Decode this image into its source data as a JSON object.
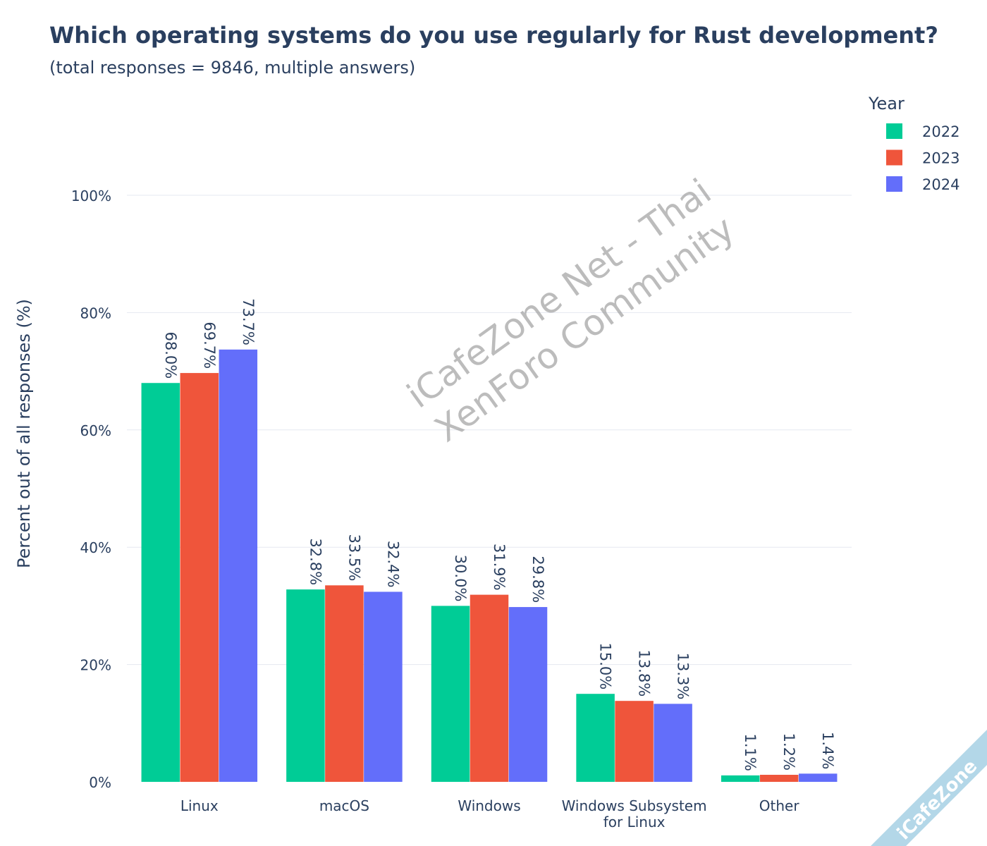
{
  "chart_data": {
    "type": "bar",
    "title": "Which operating systems do you use regularly for Rust development?",
    "subtitle": "(total responses = 9846, multiple answers)",
    "xlabel": "",
    "ylabel": "Percent out of all responses (%)",
    "ylim": [
      0,
      100
    ],
    "yticks": [
      0,
      20,
      40,
      60,
      80,
      100
    ],
    "ytick_labels": [
      "0%",
      "20%",
      "40%",
      "60%",
      "80%",
      "100%"
    ],
    "grid": true,
    "categories": [
      [
        "Linux"
      ],
      [
        "macOS"
      ],
      [
        "Windows"
      ],
      [
        "Windows Subsystem",
        "for Linux"
      ],
      [
        "Other"
      ]
    ],
    "legend": {
      "title": "Year",
      "placement": "top-right"
    },
    "series": [
      {
        "name": "2022",
        "color": "#00cc96",
        "values": [
          68.0,
          32.8,
          30.0,
          15.0,
          1.1
        ],
        "labels": [
          "68.0%",
          "32.8%",
          "30.0%",
          "15.0%",
          "1.1%"
        ]
      },
      {
        "name": "2023",
        "color": "#ef553b",
        "values": [
          69.7,
          33.5,
          31.9,
          13.8,
          1.2
        ],
        "labels": [
          "69.7%",
          "33.5%",
          "31.9%",
          "13.8%",
          "1.2%"
        ]
      },
      {
        "name": "2024",
        "color": "#636efa",
        "values": [
          73.7,
          32.4,
          29.8,
          13.3,
          1.4
        ],
        "labels": [
          "73.7%",
          "32.4%",
          "29.8%",
          "13.3%",
          "1.4%"
        ]
      }
    ]
  },
  "watermark": "iCafeZone Net - Thai XenForo Community",
  "corner_badge": "iCafeZone"
}
